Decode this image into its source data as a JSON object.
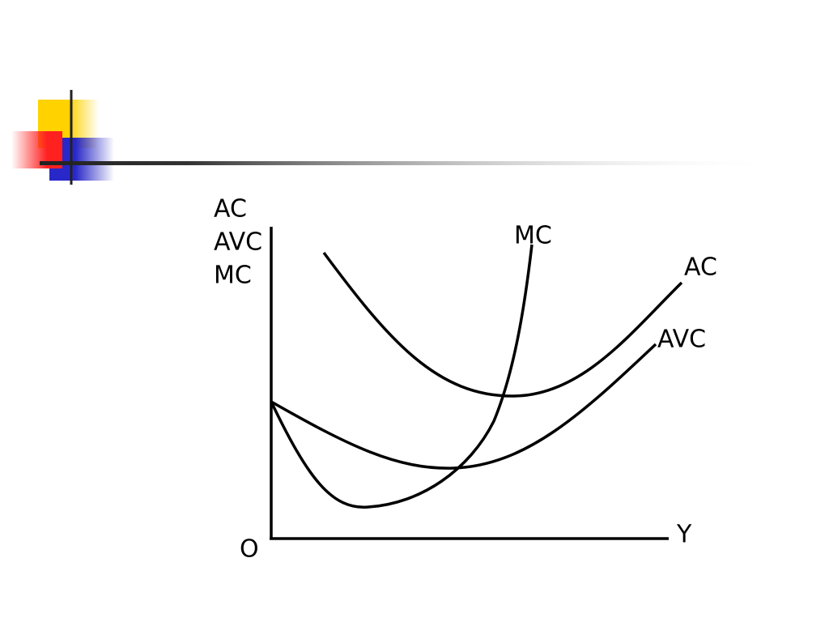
{
  "y_axis_label": [
    "AC",
    "AVC",
    "MC"
  ],
  "origin": "O",
  "x_axis_label": "Y",
  "curves": [
    {
      "label": "MC"
    },
    {
      "label": "AC"
    },
    {
      "label": "AVC"
    }
  ]
}
